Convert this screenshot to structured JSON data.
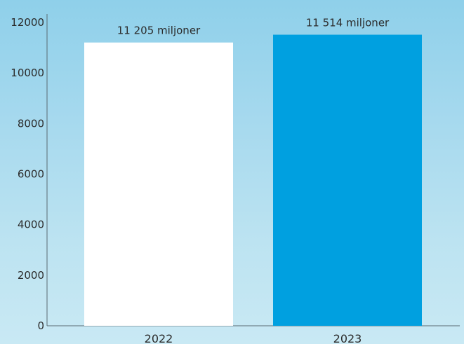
{
  "chart_data": {
    "type": "bar",
    "categories": [
      "2022",
      "2023"
    ],
    "values": [
      11205,
      11514
    ],
    "data_labels": [
      "11 205 miljoner",
      "11 514 miljoner"
    ],
    "bar_colors": [
      "#ffffff",
      "#00a0e0"
    ],
    "ylim": [
      0,
      12000
    ],
    "y_ticks": [
      "0",
      "2000",
      "4000",
      "6000",
      "8000",
      "10000",
      "12000"
    ],
    "title": "",
    "xlabel": "",
    "ylabel": "",
    "grid": false,
    "legend": "none"
  },
  "colors": {
    "axis": "#5a6a72",
    "text": "#2b2b2b"
  }
}
